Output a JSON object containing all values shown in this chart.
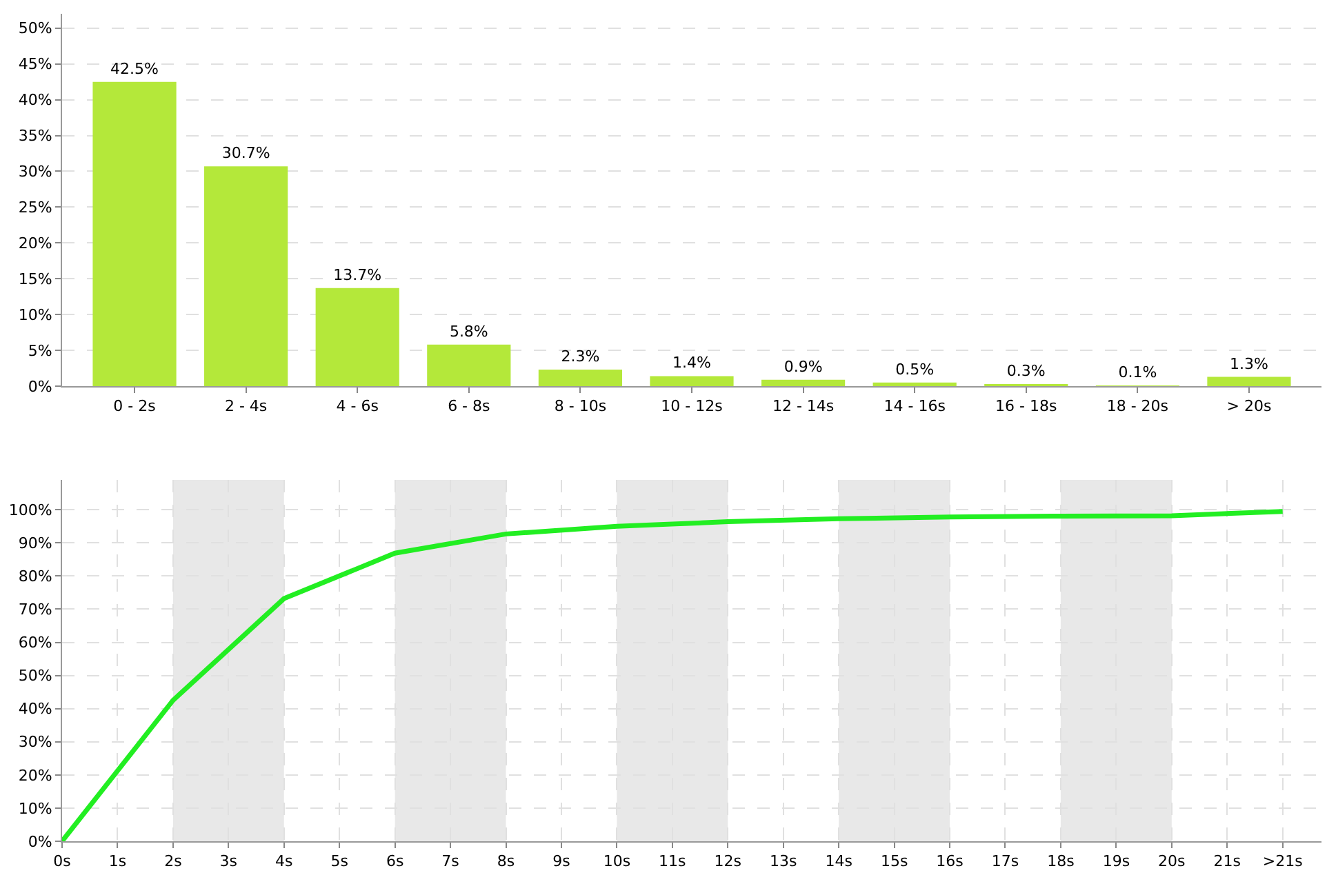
{
  "chart_data": [
    {
      "type": "bar",
      "categories": [
        "0 - 2s",
        "2 - 4s",
        "4 - 6s",
        "6 - 8s",
        "8 - 10s",
        "10 - 12s",
        "12 - 14s",
        "14 - 16s",
        "16 - 18s",
        "18 - 20s",
        "> 20s"
      ],
      "values": [
        42.5,
        30.7,
        13.7,
        5.8,
        2.3,
        1.4,
        0.9,
        0.5,
        0.3,
        0.1,
        1.3
      ],
      "value_labels": [
        "42.5%",
        "30.7%",
        "13.7%",
        "5.8%",
        "2.3%",
        "1.4%",
        "0.9%",
        "0.5%",
        "0.3%",
        "0.1%",
        "1.3%"
      ],
      "color": "#b4e83a",
      "ylim": [
        0,
        52
      ],
      "yticks": [
        {
          "value": 0,
          "label": "0%"
        },
        {
          "value": 5,
          "label": "5%"
        },
        {
          "value": 10,
          "label": "10%"
        },
        {
          "value": 15,
          "label": "15%"
        },
        {
          "value": 20,
          "label": "20%"
        },
        {
          "value": 25,
          "label": "25%"
        },
        {
          "value": 30,
          "label": "30%"
        },
        {
          "value": 35,
          "label": "35%"
        },
        {
          "value": 40,
          "label": "40%"
        },
        {
          "value": 45,
          "label": "45%"
        },
        {
          "value": 50,
          "label": "50%"
        }
      ],
      "grid": "y"
    },
    {
      "type": "line",
      "x": [
        0,
        2,
        4,
        6,
        8,
        10,
        12,
        14,
        16,
        18,
        20,
        22
      ],
      "values": [
        0,
        42.5,
        73.2,
        86.9,
        92.7,
        95.0,
        96.4,
        97.3,
        97.8,
        98.1,
        98.2,
        99.5
      ],
      "color": "#22ee22",
      "xlim": [
        0,
        22.7
      ],
      "xticks": [
        {
          "value": 0,
          "label": "0s"
        },
        {
          "value": 1,
          "label": "1s"
        },
        {
          "value": 2,
          "label": "2s"
        },
        {
          "value": 3,
          "label": "3s"
        },
        {
          "value": 4,
          "label": "4s"
        },
        {
          "value": 5,
          "label": "5s"
        },
        {
          "value": 6,
          "label": "6s"
        },
        {
          "value": 7,
          "label": "7s"
        },
        {
          "value": 8,
          "label": "8s"
        },
        {
          "value": 9,
          "label": "9s"
        },
        {
          "value": 10,
          "label": "10s"
        },
        {
          "value": 11,
          "label": "11s"
        },
        {
          "value": 12,
          "label": "12s"
        },
        {
          "value": 13,
          "label": "13s"
        },
        {
          "value": 14,
          "label": "14s"
        },
        {
          "value": 15,
          "label": "15s"
        },
        {
          "value": 16,
          "label": "16s"
        },
        {
          "value": 17,
          "label": "17s"
        },
        {
          "value": 18,
          "label": "18s"
        },
        {
          "value": 19,
          "label": "19s"
        },
        {
          "value": 20,
          "label": "20s"
        },
        {
          "value": 21,
          "label": "21s"
        },
        {
          "value": 22,
          "label": ">21s"
        }
      ],
      "ylim": [
        0,
        109
      ],
      "yticks": [
        {
          "value": 0,
          "label": "0%"
        },
        {
          "value": 10,
          "label": "10%"
        },
        {
          "value": 20,
          "label": "20%"
        },
        {
          "value": 30,
          "label": "30%"
        },
        {
          "value": 40,
          "label": "40%"
        },
        {
          "value": 50,
          "label": "50%"
        },
        {
          "value": 60,
          "label": "60%"
        },
        {
          "value": 70,
          "label": "70%"
        },
        {
          "value": 80,
          "label": "80%"
        },
        {
          "value": 90,
          "label": "90%"
        },
        {
          "value": 100,
          "label": "100%"
        }
      ],
      "bands": [
        {
          "axis": "x",
          "from": 2,
          "to": 4,
          "color": "#e8e8e8"
        },
        {
          "axis": "x",
          "from": 6,
          "to": 8,
          "color": "#e8e8e8"
        },
        {
          "axis": "x",
          "from": 10,
          "to": 12,
          "color": "#e8e8e8"
        },
        {
          "axis": "x",
          "from": 14,
          "to": 16,
          "color": "#e8e8e8"
        },
        {
          "axis": "x",
          "from": 18,
          "to": 20,
          "color": "#e8e8e8"
        }
      ],
      "grid": true
    }
  ]
}
